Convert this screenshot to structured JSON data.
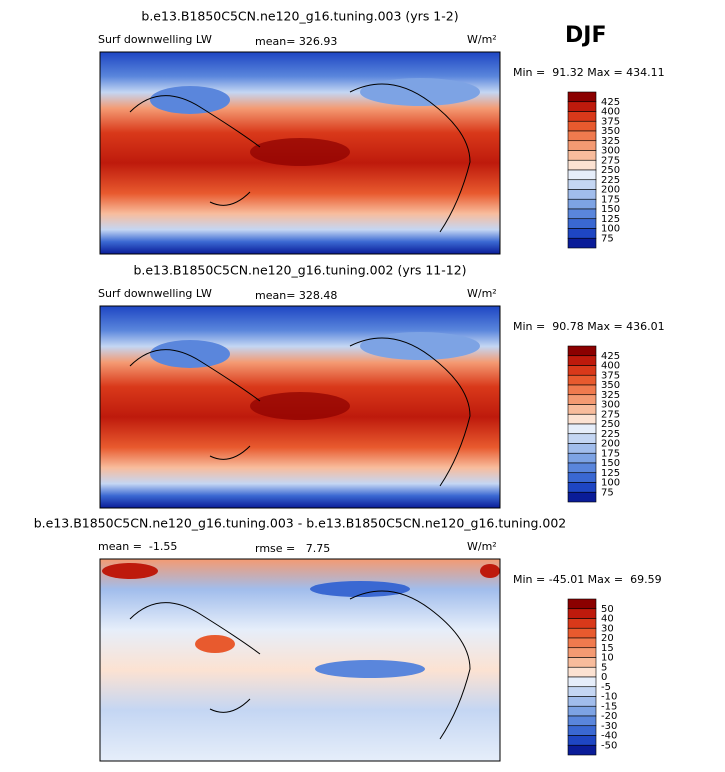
{
  "figure_title": "DJF",
  "panels": [
    {
      "title": "b.e13.B1850C5CN.ne120_g16.tuning.003 (yrs 1-2)",
      "left_label": "Surf downwelling LW",
      "center_label": "mean= 326.93",
      "units": "W/m²",
      "minmax": "Min =  91.32 Max = 434.11",
      "colorbar": {
        "labels": [
          425,
          400,
          375,
          350,
          325,
          300,
          275,
          250,
          225,
          200,
          175,
          150,
          125,
          100,
          75
        ],
        "colors": [
          "#8b0000",
          "#be1a0c",
          "#d9391a",
          "#e85a2e",
          "#f07a4e",
          "#f49a72",
          "#f8bc9c",
          "#fce2d2",
          "#e6eefa",
          "#c4d6f3",
          "#a1bdec",
          "#7da3e4",
          "#5a86dc",
          "#3a68d2",
          "#1e46c3",
          "#0a1c98"
        ]
      }
    },
    {
      "title": "b.e13.B1850C5CN.ne120_g16.tuning.002 (yrs 11-12)",
      "left_label": "Surf downwelling LW",
      "center_label": "mean= 328.48",
      "units": "W/m²",
      "minmax": "Min =  90.78 Max = 436.01",
      "colorbar": {
        "labels": [
          425,
          400,
          375,
          350,
          325,
          300,
          275,
          250,
          225,
          200,
          175,
          150,
          125,
          100,
          75
        ],
        "colors": [
          "#8b0000",
          "#be1a0c",
          "#d9391a",
          "#e85a2e",
          "#f07a4e",
          "#f49a72",
          "#f8bc9c",
          "#fce2d2",
          "#e6eefa",
          "#c4d6f3",
          "#a1bdec",
          "#7da3e4",
          "#5a86dc",
          "#3a68d2",
          "#1e46c3",
          "#0a1c98"
        ]
      }
    },
    {
      "title": "b.e13.B1850C5CN.ne120_g16.tuning.003 - b.e13.B1850C5CN.ne120_g16.tuning.002",
      "left_label": "mean =  -1.55",
      "center_label": "rmse =   7.75",
      "units": "W/m²",
      "minmax": "Min = -45.01 Max =  69.59",
      "colorbar": {
        "labels": [
          50,
          40,
          30,
          20,
          15,
          10,
          5,
          0,
          -5,
          -10,
          -15,
          -20,
          -30,
          -40,
          -50
        ],
        "colors": [
          "#8b0000",
          "#be1a0c",
          "#d9391a",
          "#e85a2e",
          "#f07a4e",
          "#f49a72",
          "#f8bc9c",
          "#fce2d2",
          "#e6eefa",
          "#c4d6f3",
          "#a1bdec",
          "#7da3e4",
          "#5a86dc",
          "#3a68d2",
          "#1e46c3",
          "#0a1c98"
        ]
      }
    }
  ]
}
